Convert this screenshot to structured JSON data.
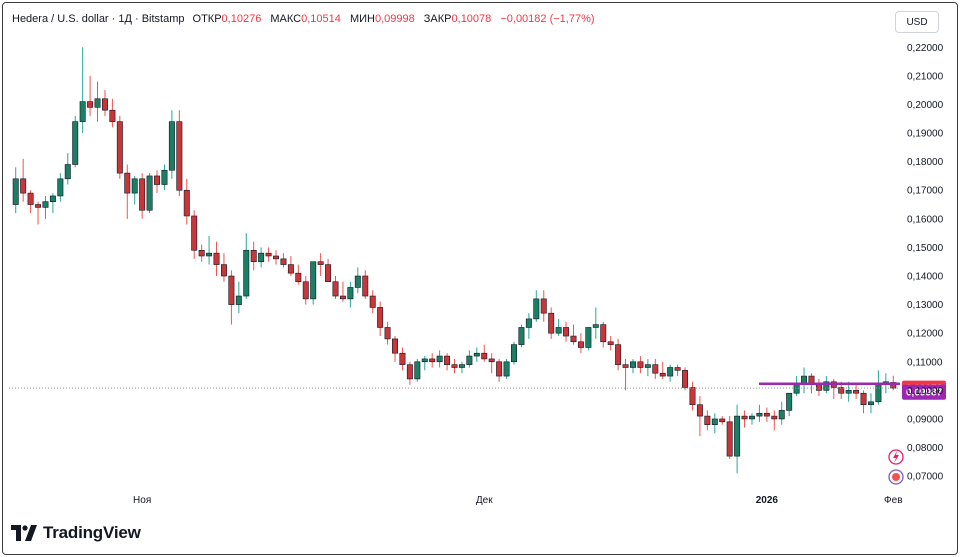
{
  "header": {
    "symbol": "Hedera / U.S. dollar · 1Д · Bitstamp",
    "open_label": "ОТКР",
    "open_value": "0,10276",
    "high_label": "МАКС",
    "high_value": "0,10514",
    "low_label": "МИН",
    "low_value": "0,09998",
    "close_label": "ЗАКР",
    "close_value": "0,10078",
    "change": "−0,00182 (−1,77%)"
  },
  "currency_button": "USD",
  "branding": "TradingView",
  "colors": {
    "up": "#26a69a",
    "down": "#ef5350",
    "upBody": "#1a7f64",
    "downBody": "#c8363a",
    "last_price_tag": "#f23645",
    "line_tag": "#9c27b0"
  },
  "chart_data": {
    "type": "candlestick",
    "interval": "1D",
    "x_ticks": [
      "Ноя",
      "Дек",
      "2026",
      "Фев"
    ],
    "y_ticks": [
      "0,22000",
      "0,21000",
      "0,20000",
      "0,19000",
      "0,18000",
      "0,17000",
      "0,16000",
      "0,15000",
      "0,14000",
      "0,13000",
      "0,12000",
      "0,11000",
      "0,10000",
      "0,09000",
      "0,08000",
      "0,07000"
    ],
    "y_range": [
      0.0655,
      0.225
    ],
    "last_price": "0,10078",
    "horizontal_line": "0,09987",
    "candles": [
      [
        0.165,
        0.178,
        0.162,
        0.174
      ],
      [
        0.174,
        0.181,
        0.166,
        0.169
      ],
      [
        0.169,
        0.17,
        0.162,
        0.165
      ],
      [
        0.165,
        0.166,
        0.158,
        0.164
      ],
      [
        0.164,
        0.168,
        0.16,
        0.166
      ],
      [
        0.166,
        0.169,
        0.162,
        0.168
      ],
      [
        0.168,
        0.176,
        0.166,
        0.174
      ],
      [
        0.174,
        0.183,
        0.172,
        0.179
      ],
      [
        0.179,
        0.196,
        0.178,
        0.194
      ],
      [
        0.194,
        0.22,
        0.19,
        0.201
      ],
      [
        0.201,
        0.21,
        0.196,
        0.199
      ],
      [
        0.199,
        0.208,
        0.194,
        0.202
      ],
      [
        0.202,
        0.205,
        0.196,
        0.198
      ],
      [
        0.198,
        0.202,
        0.192,
        0.194
      ],
      [
        0.194,
        0.196,
        0.174,
        0.176
      ],
      [
        0.176,
        0.179,
        0.16,
        0.169
      ],
      [
        0.169,
        0.175,
        0.165,
        0.174
      ],
      [
        0.174,
        0.176,
        0.16,
        0.163
      ],
      [
        0.163,
        0.176,
        0.162,
        0.175
      ],
      [
        0.175,
        0.177,
        0.169,
        0.172
      ],
      [
        0.172,
        0.179,
        0.17,
        0.177
      ],
      [
        0.177,
        0.198,
        0.174,
        0.194
      ],
      [
        0.194,
        0.198,
        0.168,
        0.17
      ],
      [
        0.17,
        0.174,
        0.158,
        0.161
      ],
      [
        0.161,
        0.163,
        0.146,
        0.149
      ],
      [
        0.149,
        0.151,
        0.145,
        0.147
      ],
      [
        0.147,
        0.154,
        0.144,
        0.148
      ],
      [
        0.148,
        0.152,
        0.14,
        0.144
      ],
      [
        0.144,
        0.148,
        0.138,
        0.14
      ],
      [
        0.14,
        0.142,
        0.123,
        0.13
      ],
      [
        0.13,
        0.138,
        0.127,
        0.133
      ],
      [
        0.133,
        0.155,
        0.132,
        0.149
      ],
      [
        0.149,
        0.152,
        0.142,
        0.145
      ],
      [
        0.145,
        0.15,
        0.143,
        0.148
      ],
      [
        0.148,
        0.15,
        0.145,
        0.147
      ],
      [
        0.147,
        0.149,
        0.144,
        0.146
      ],
      [
        0.146,
        0.148,
        0.143,
        0.144
      ],
      [
        0.144,
        0.147,
        0.14,
        0.141
      ],
      [
        0.141,
        0.144,
        0.137,
        0.138
      ],
      [
        0.138,
        0.14,
        0.13,
        0.132
      ],
      [
        0.132,
        0.144,
        0.13,
        0.145
      ],
      [
        0.145,
        0.148,
        0.14,
        0.144
      ],
      [
        0.144,
        0.146,
        0.139,
        0.138
      ],
      [
        0.138,
        0.14,
        0.132,
        0.133
      ],
      [
        0.133,
        0.138,
        0.131,
        0.132
      ],
      [
        0.132,
        0.138,
        0.129,
        0.136
      ],
      [
        0.136,
        0.143,
        0.134,
        0.14
      ],
      [
        0.14,
        0.142,
        0.132,
        0.133
      ],
      [
        0.133,
        0.135,
        0.127,
        0.129
      ],
      [
        0.129,
        0.131,
        0.119,
        0.122
      ],
      [
        0.122,
        0.124,
        0.116,
        0.118
      ],
      [
        0.118,
        0.119,
        0.11,
        0.113
      ],
      [
        0.113,
        0.115,
        0.107,
        0.109
      ],
      [
        0.109,
        0.11,
        0.102,
        0.104
      ],
      [
        0.104,
        0.111,
        0.103,
        0.11
      ],
      [
        0.11,
        0.112,
        0.107,
        0.111
      ],
      [
        0.111,
        0.113,
        0.108,
        0.11
      ],
      [
        0.11,
        0.114,
        0.108,
        0.112
      ],
      [
        0.112,
        0.113,
        0.107,
        0.109
      ],
      [
        0.109,
        0.111,
        0.106,
        0.108
      ],
      [
        0.108,
        0.11,
        0.106,
        0.109
      ],
      [
        0.109,
        0.114,
        0.108,
        0.112
      ],
      [
        0.112,
        0.115,
        0.11,
        0.113
      ],
      [
        0.113,
        0.116,
        0.11,
        0.111
      ],
      [
        0.111,
        0.113,
        0.106,
        0.11
      ],
      [
        0.11,
        0.111,
        0.103,
        0.105
      ],
      [
        0.105,
        0.111,
        0.104,
        0.11
      ],
      [
        0.11,
        0.117,
        0.109,
        0.116
      ],
      [
        0.116,
        0.123,
        0.115,
        0.122
      ],
      [
        0.122,
        0.127,
        0.118,
        0.125
      ],
      [
        0.125,
        0.135,
        0.124,
        0.132
      ],
      [
        0.132,
        0.135,
        0.124,
        0.127
      ],
      [
        0.127,
        0.129,
        0.118,
        0.12
      ],
      [
        0.12,
        0.125,
        0.119,
        0.122
      ],
      [
        0.122,
        0.124,
        0.117,
        0.119
      ],
      [
        0.119,
        0.123,
        0.116,
        0.117
      ],
      [
        0.117,
        0.12,
        0.113,
        0.115
      ],
      [
        0.115,
        0.122,
        0.114,
        0.122
      ],
      [
        0.122,
        0.129,
        0.118,
        0.123
      ],
      [
        0.123,
        0.124,
        0.115,
        0.117
      ],
      [
        0.117,
        0.119,
        0.114,
        0.116
      ],
      [
        0.116,
        0.118,
        0.107,
        0.109
      ],
      [
        0.109,
        0.111,
        0.1,
        0.108
      ],
      [
        0.108,
        0.111,
        0.106,
        0.11
      ],
      [
        0.11,
        0.112,
        0.106,
        0.108
      ],
      [
        0.108,
        0.111,
        0.105,
        0.109
      ],
      [
        0.109,
        0.111,
        0.104,
        0.106
      ],
      [
        0.106,
        0.11,
        0.104,
        0.105
      ],
      [
        0.105,
        0.109,
        0.103,
        0.108
      ],
      [
        0.108,
        0.109,
        0.105,
        0.107
      ],
      [
        0.107,
        0.108,
        0.1,
        0.101
      ],
      [
        0.101,
        0.103,
        0.093,
        0.095
      ],
      [
        0.095,
        0.098,
        0.084,
        0.091
      ],
      [
        0.091,
        0.093,
        0.086,
        0.088
      ],
      [
        0.088,
        0.092,
        0.085,
        0.09
      ],
      [
        0.09,
        0.091,
        0.088,
        0.089
      ],
      [
        0.089,
        0.091,
        0.076,
        0.077
      ],
      [
        0.077,
        0.095,
        0.071,
        0.091
      ],
      [
        0.091,
        0.093,
        0.087,
        0.09
      ],
      [
        0.09,
        0.092,
        0.088,
        0.091
      ],
      [
        0.091,
        0.095,
        0.089,
        0.092
      ],
      [
        0.092,
        0.094,
        0.089,
        0.091
      ],
      [
        0.091,
        0.093,
        0.086,
        0.09
      ],
      [
        0.09,
        0.096,
        0.088,
        0.093
      ],
      [
        0.093,
        0.099,
        0.091,
        0.099
      ],
      [
        0.099,
        0.105,
        0.098,
        0.102
      ],
      [
        0.102,
        0.108,
        0.099,
        0.105
      ],
      [
        0.105,
        0.106,
        0.099,
        0.102
      ],
      [
        0.102,
        0.104,
        0.098,
        0.1
      ],
      [
        0.1,
        0.105,
        0.099,
        0.103
      ],
      [
        0.103,
        0.104,
        0.097,
        0.101
      ],
      [
        0.101,
        0.103,
        0.097,
        0.099
      ],
      [
        0.099,
        0.103,
        0.096,
        0.1
      ],
      [
        0.1,
        0.102,
        0.097,
        0.099
      ],
      [
        0.099,
        0.1,
        0.092,
        0.095
      ],
      [
        0.095,
        0.099,
        0.092,
        0.096
      ],
      [
        0.096,
        0.107,
        0.095,
        0.102
      ],
      [
        0.102,
        0.106,
        0.099,
        0.103
      ],
      [
        0.10276,
        0.10514,
        0.09998,
        0.10078
      ]
    ]
  }
}
